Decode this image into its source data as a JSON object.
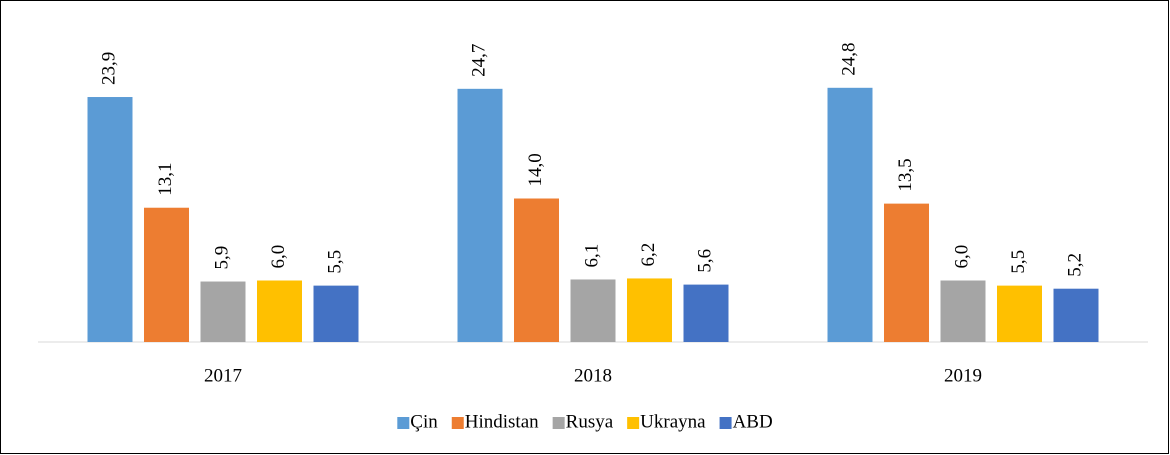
{
  "chart_data": {
    "type": "bar",
    "categories": [
      "2017",
      "2018",
      "2019"
    ],
    "series": [
      {
        "name": "Çin",
        "color": "#5b9bd5",
        "values": [
          23.9,
          24.7,
          24.8
        ],
        "value_labels": [
          "23,9",
          "24,7",
          "24,8"
        ]
      },
      {
        "name": "Hindistan",
        "color": "#ed7d31",
        "values": [
          13.1,
          14.0,
          13.5
        ],
        "value_labels": [
          "13,1",
          "14,0",
          "13,5"
        ]
      },
      {
        "name": "Rusya",
        "color": "#a5a5a5",
        "values": [
          5.9,
          6.1,
          6.0
        ],
        "value_labels": [
          "5,9",
          "6,1",
          "6,0"
        ]
      },
      {
        "name": "Ukrayna",
        "color": "#ffc000",
        "values": [
          6.0,
          6.2,
          5.5
        ],
        "value_labels": [
          "6,0",
          "6,2",
          "5,5"
        ]
      },
      {
        "name": "ABD",
        "color": "#4472c4",
        "values": [
          5.5,
          5.6,
          5.2
        ],
        "value_labels": [
          "5,5",
          "5,6",
          "5,2"
        ]
      }
    ],
    "ylim": [
      0,
      28
    ],
    "legend": "bottom"
  }
}
